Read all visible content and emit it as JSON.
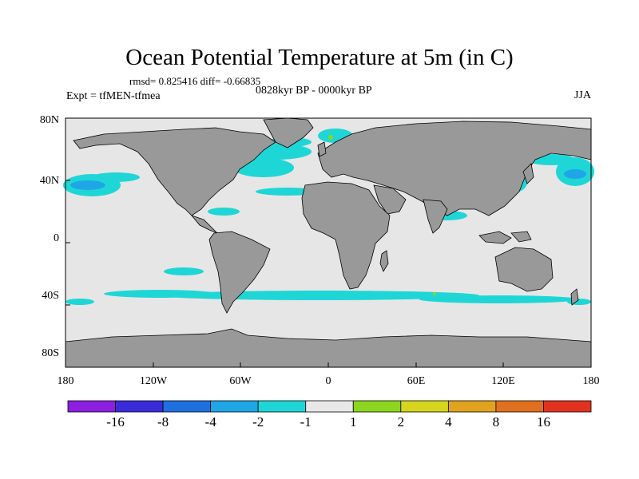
{
  "title": "Ocean Potential Temperature at 5m (in C)",
  "stats": "rmsd= 0.825416 diff= -0.66835",
  "period": "0828kyr BP - 0000kyr BP",
  "experiment": "Expt = tfMEN-tfmea",
  "season": "JJA",
  "lat_ticks": [
    "80N",
    "40N",
    "0",
    "40S",
    "80S"
  ],
  "lon_ticks": [
    "180",
    "120W",
    "60W",
    "0",
    "60E",
    "120E",
    "180"
  ],
  "colorbar": {
    "colors": [
      "#8c1fe0",
      "#3a2bd8",
      "#1f6fe0",
      "#1fa6e6",
      "#1fd6d6",
      "#e8e8e8",
      "#8cd61f",
      "#d6d61f",
      "#e0a21f",
      "#e0701f",
      "#e0321f"
    ],
    "labels": [
      "-16",
      "-8",
      "-4",
      "-2",
      "-1",
      "1",
      "2",
      "4",
      "8",
      "16"
    ]
  },
  "colors": {
    "ocean": "#e6e6e6",
    "land": "#999999",
    "cool_anomaly": "#1fd6d6",
    "stronger_cool": "#1fa6e6",
    "warm_anomaly": "#8cd61f"
  }
}
